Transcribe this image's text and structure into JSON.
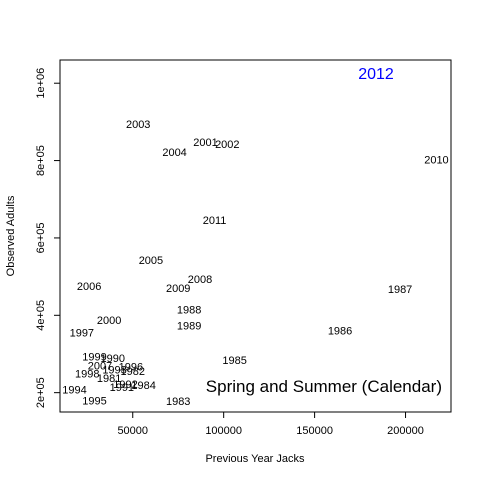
{
  "chart_data": {
    "type": "scatter",
    "marker": "text-label",
    "xlabel": "Previous Year Jacks",
    "ylabel": "Observed Adults",
    "xlim": [
      10000,
      225000
    ],
    "ylim": [
      150000,
      1060000
    ],
    "xticks": [
      50000,
      100000,
      150000,
      200000
    ],
    "xtick_labels": [
      "50000",
      "100000",
      "150000",
      "200000"
    ],
    "yticks": [
      200000,
      400000,
      600000,
      800000,
      1000000
    ],
    "ytick_labels": [
      "2e+05",
      "4e+05",
      "6e+05",
      "8e+05",
      "1e+06"
    ],
    "grid": false,
    "annotation": "Spring and Summer (Calendar)",
    "year_label": "2012",
    "year_color": "#0000ff",
    "points": [
      {
        "label": "2003",
        "x": 53000,
        "y": 895000
      },
      {
        "label": "2001",
        "x": 90000,
        "y": 848000
      },
      {
        "label": "2002",
        "x": 102000,
        "y": 843000
      },
      {
        "label": "2004",
        "x": 73000,
        "y": 822000
      },
      {
        "label": "2010",
        "x": 217000,
        "y": 803000
      },
      {
        "label": "2011",
        "x": 95000,
        "y": 646000
      },
      {
        "label": "2005",
        "x": 60000,
        "y": 543000
      },
      {
        "label": "2008",
        "x": 87000,
        "y": 494000
      },
      {
        "label": "2006",
        "x": 26000,
        "y": 476000
      },
      {
        "label": "2009",
        "x": 75000,
        "y": 470000
      },
      {
        "label": "1987",
        "x": 197000,
        "y": 468000
      },
      {
        "label": "1988",
        "x": 81000,
        "y": 415000
      },
      {
        "label": "2000",
        "x": 37000,
        "y": 388000
      },
      {
        "label": "1989",
        "x": 81000,
        "y": 373000
      },
      {
        "label": "1986",
        "x": 164000,
        "y": 361000
      },
      {
        "label": "1997",
        "x": 22000,
        "y": 356000
      },
      {
        "label": "1999",
        "x": 29000,
        "y": 293000
      },
      {
        "label": "1990",
        "x": 39000,
        "y": 290000
      },
      {
        "label": "1985",
        "x": 106000,
        "y": 285000
      },
      {
        "label": "2007",
        "x": 32000,
        "y": 270000
      },
      {
        "label": "1996",
        "x": 49000,
        "y": 268000
      },
      {
        "label": "1993",
        "x": 40000,
        "y": 260000
      },
      {
        "label": "1982",
        "x": 50000,
        "y": 256000
      },
      {
        "label": "1998",
        "x": 25000,
        "y": 250000
      },
      {
        "label": "1981",
        "x": 37000,
        "y": 238000
      },
      {
        "label": "1992",
        "x": 46000,
        "y": 223000
      },
      {
        "label": "1984",
        "x": 56000,
        "y": 220000
      },
      {
        "label": "1991",
        "x": 44000,
        "y": 215000
      },
      {
        "label": "1994",
        "x": 18000,
        "y": 208000
      },
      {
        "label": "1983",
        "x": 75000,
        "y": 178000
      },
      {
        "label": "1995",
        "x": 29000,
        "y": 180000
      }
    ]
  }
}
